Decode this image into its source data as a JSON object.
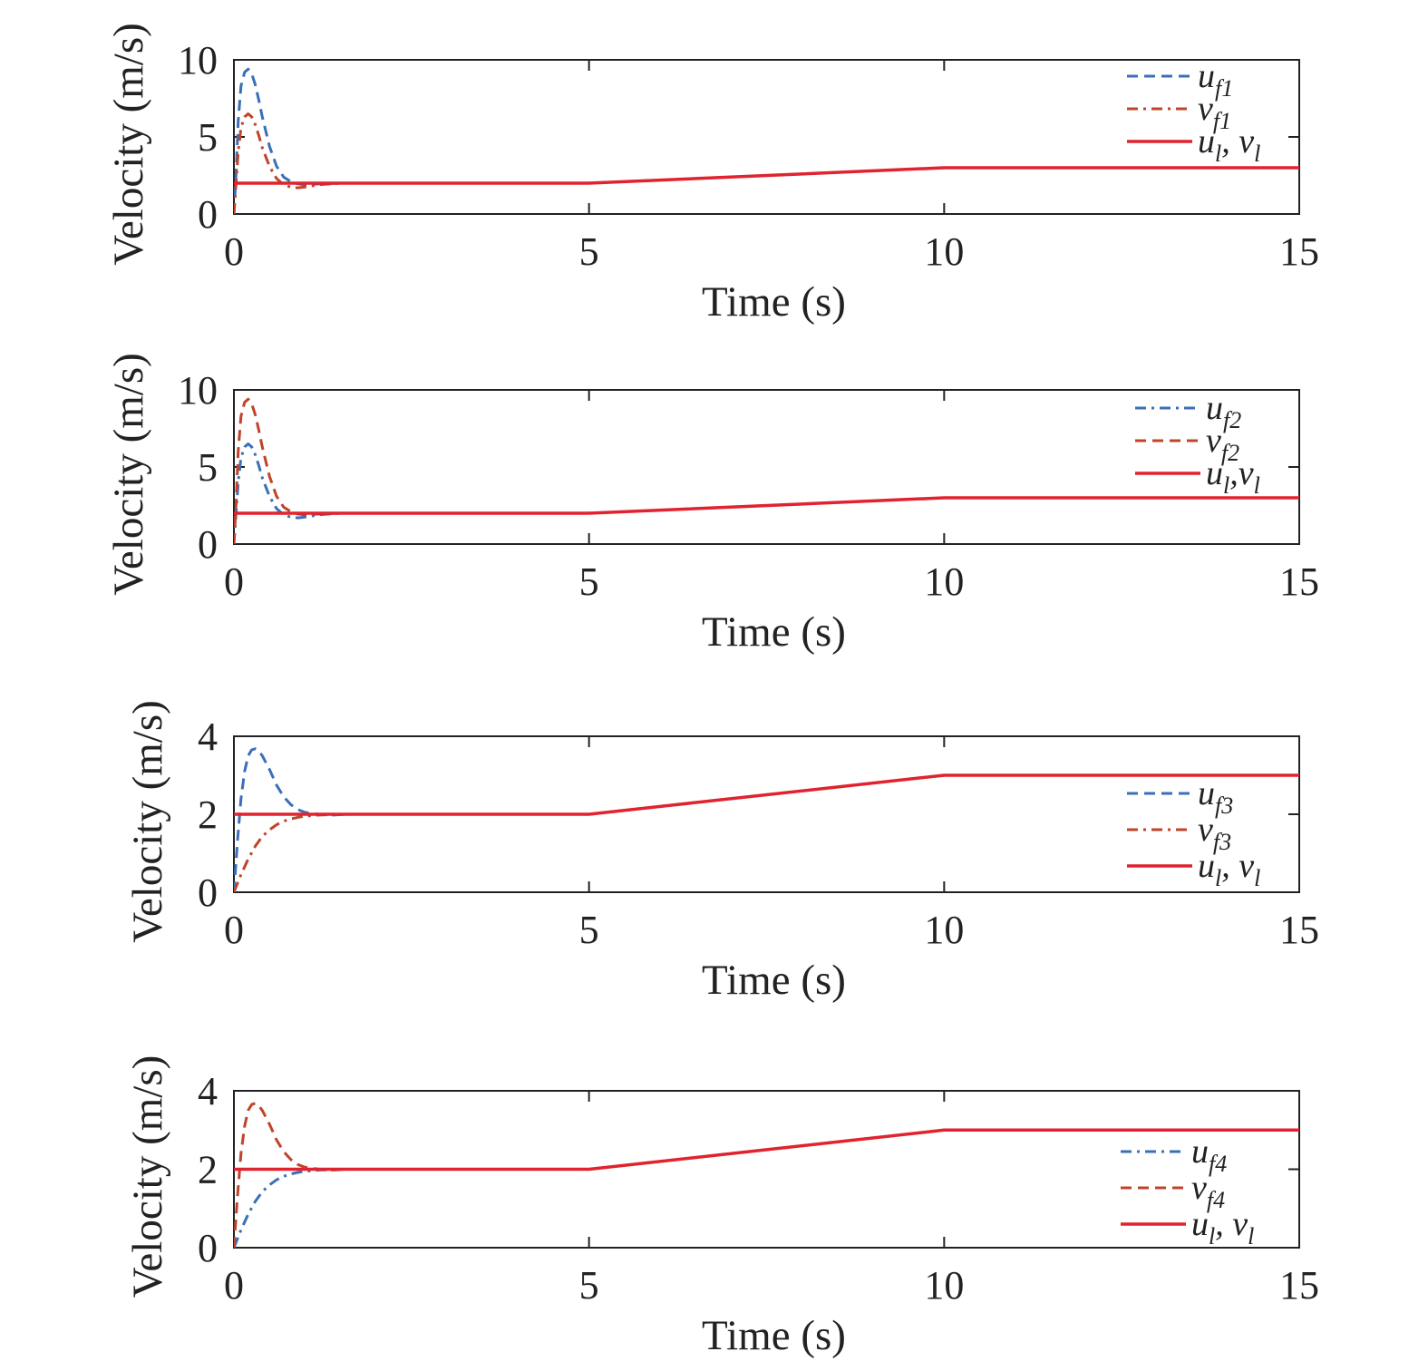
{
  "colors": {
    "blue": "#3a6fb7",
    "darkred": "#c0432a",
    "red": "#e0232f",
    "axis": "#222222"
  },
  "chart_data": [
    {
      "type": "line",
      "xlabel": "Time (s)",
      "ylabel": "Velocity (m/s)",
      "xlim": [
        0,
        15
      ],
      "ylim": [
        0,
        10
      ],
      "xticks": [
        "0",
        "5",
        "10",
        "15"
      ],
      "yticks": [
        "0",
        "5",
        "10"
      ],
      "legend_position": "top-right",
      "series": [
        {
          "name": "u_f1",
          "label_main": "u",
          "label_sub": "f1",
          "color": "blue",
          "style": "dashed",
          "x": [
            0,
            0.03,
            0.06,
            0.1,
            0.15,
            0.2,
            0.25,
            0.3,
            0.35,
            0.4,
            0.5,
            0.6,
            0.7,
            0.8,
            0.9,
            1.0,
            1.2,
            1.5,
            2.0
          ],
          "y": [
            0,
            2.6,
            6.0,
            8.3,
            9.2,
            9.4,
            9.1,
            8.4,
            7.4,
            6.3,
            4.4,
            3.1,
            2.4,
            2.1,
            1.95,
            1.9,
            1.95,
            2.0,
            2.0
          ]
        },
        {
          "name": "v_f1",
          "label_main": "v",
          "label_sub": "f1",
          "color": "darkred",
          "style": "dashdot",
          "x": [
            0,
            0.03,
            0.06,
            0.1,
            0.15,
            0.2,
            0.25,
            0.3,
            0.35,
            0.4,
            0.5,
            0.6,
            0.7,
            0.8,
            0.9,
            1.0,
            1.2,
            1.5,
            2.0
          ],
          "y": [
            0,
            2.0,
            4.0,
            5.6,
            6.3,
            6.5,
            6.3,
            5.8,
            5.1,
            4.3,
            3.1,
            2.3,
            1.9,
            1.75,
            1.7,
            1.75,
            1.9,
            2.0,
            2.0
          ]
        },
        {
          "name": "u_l, v_l",
          "label_main": "u",
          "label_sub": "l",
          "label_tail": ", v",
          "label_sub2": "l",
          "color": "red",
          "style": "solid",
          "x": [
            0,
            5,
            10,
            15
          ],
          "y": [
            2,
            2,
            3,
            3
          ]
        }
      ]
    },
    {
      "type": "line",
      "xlabel": "Time (s)",
      "ylabel": "Velocity (m/s)",
      "xlim": [
        0,
        15
      ],
      "ylim": [
        0,
        10
      ],
      "xticks": [
        "0",
        "5",
        "10",
        "15"
      ],
      "yticks": [
        "0",
        "5",
        "10"
      ],
      "legend_position": "top-right",
      "series": [
        {
          "name": "u_f2",
          "label_main": "u",
          "label_sub": "f2",
          "color": "blue",
          "style": "dashdot",
          "x": [
            0,
            0.03,
            0.06,
            0.1,
            0.15,
            0.2,
            0.25,
            0.3,
            0.35,
            0.4,
            0.5,
            0.6,
            0.7,
            0.8,
            0.9,
            1.0,
            1.2,
            1.5,
            2.0
          ],
          "y": [
            0,
            2.0,
            4.0,
            5.6,
            6.3,
            6.5,
            6.3,
            5.8,
            5.1,
            4.3,
            3.1,
            2.3,
            1.9,
            1.75,
            1.7,
            1.75,
            1.9,
            2.0,
            2.0
          ]
        },
        {
          "name": "v_f2",
          "label_main": "v",
          "label_sub": "f2",
          "color": "darkred",
          "style": "dashed",
          "x": [
            0,
            0.03,
            0.06,
            0.1,
            0.15,
            0.2,
            0.25,
            0.3,
            0.35,
            0.4,
            0.5,
            0.6,
            0.7,
            0.8,
            0.9,
            1.0,
            1.2,
            1.5,
            2.0
          ],
          "y": [
            0,
            2.6,
            6.0,
            8.3,
            9.2,
            9.4,
            9.1,
            8.4,
            7.4,
            6.3,
            4.4,
            3.1,
            2.4,
            2.1,
            1.95,
            1.9,
            1.95,
            2.0,
            2.0
          ]
        },
        {
          "name": "u_l,v_l",
          "label_main": "u",
          "label_sub": "l",
          "label_tail": ",v",
          "label_sub2": "l",
          "color": "red",
          "style": "solid",
          "x": [
            0,
            5,
            10,
            15
          ],
          "y": [
            2,
            2,
            3,
            3
          ]
        }
      ]
    },
    {
      "type": "line",
      "xlabel": "Time (s)",
      "ylabel": "Velocity (m/s)",
      "xlim": [
        0,
        15
      ],
      "ylim": [
        0,
        4
      ],
      "xticks": [
        "0",
        "5",
        "10",
        "15"
      ],
      "yticks": [
        "0",
        "2",
        "4"
      ],
      "legend_position": "lower-right",
      "series": [
        {
          "name": "u_f3",
          "label_main": "u",
          "label_sub": "f3",
          "color": "blue",
          "style": "dashed",
          "x": [
            0,
            0.05,
            0.1,
            0.15,
            0.2,
            0.25,
            0.3,
            0.35,
            0.4,
            0.5,
            0.6,
            0.7,
            0.8,
            0.9,
            1.0,
            1.2,
            1.4,
            1.6,
            2.0
          ],
          "y": [
            0,
            1.3,
            2.4,
            3.1,
            3.5,
            3.65,
            3.68,
            3.62,
            3.5,
            3.15,
            2.75,
            2.45,
            2.25,
            2.12,
            2.05,
            2.0,
            1.98,
            2.0,
            2.0
          ]
        },
        {
          "name": "v_f3",
          "label_main": "v",
          "label_sub": "f3",
          "color": "darkred",
          "style": "dashdot",
          "x": [
            0,
            0.1,
            0.2,
            0.3,
            0.4,
            0.5,
            0.6,
            0.7,
            0.8,
            0.9,
            1.0,
            1.2,
            1.4,
            1.6,
            2.0
          ],
          "y": [
            0,
            0.45,
            0.85,
            1.18,
            1.43,
            1.6,
            1.73,
            1.82,
            1.88,
            1.92,
            1.95,
            1.98,
            1.99,
            2.0,
            2.0
          ]
        },
        {
          "name": "u_l, v_l",
          "label_main": "u",
          "label_sub": "l",
          "label_tail": ", v",
          "label_sub2": "l",
          "color": "red",
          "style": "solid",
          "x": [
            0,
            5,
            10,
            15
          ],
          "y": [
            2,
            2,
            3,
            3
          ]
        }
      ]
    },
    {
      "type": "line",
      "xlabel": "Time (s)",
      "ylabel": "Velocity (m/s)",
      "xlim": [
        0,
        15
      ],
      "ylim": [
        0,
        4
      ],
      "xticks": [
        "0",
        "5",
        "10",
        "15"
      ],
      "yticks": [
        "0",
        "2",
        "4"
      ],
      "legend_position": "lower-right",
      "series": [
        {
          "name": "u_f4",
          "label_main": "u",
          "label_sub": "f4",
          "color": "blue",
          "style": "dashdot",
          "x": [
            0,
            0.1,
            0.2,
            0.3,
            0.4,
            0.5,
            0.6,
            0.7,
            0.8,
            0.9,
            1.0,
            1.2,
            1.4,
            1.6,
            2.0
          ],
          "y": [
            0,
            0.45,
            0.85,
            1.18,
            1.43,
            1.6,
            1.73,
            1.82,
            1.88,
            1.92,
            1.95,
            1.98,
            1.99,
            2.0,
            2.0
          ]
        },
        {
          "name": "v_f4",
          "label_main": "v",
          "label_sub": "f4",
          "color": "darkred",
          "style": "dashed",
          "x": [
            0,
            0.05,
            0.1,
            0.15,
            0.2,
            0.25,
            0.3,
            0.35,
            0.4,
            0.5,
            0.6,
            0.7,
            0.8,
            0.9,
            1.0,
            1.2,
            1.4,
            1.6,
            2.0
          ],
          "y": [
            0,
            1.3,
            2.4,
            3.1,
            3.5,
            3.65,
            3.68,
            3.62,
            3.5,
            3.15,
            2.75,
            2.45,
            2.25,
            2.12,
            2.05,
            2.0,
            1.98,
            2.0,
            2.0
          ]
        },
        {
          "name": "u_l, v_l",
          "label_main": "u",
          "label_sub": "l",
          "label_tail": ", v",
          "label_sub2": "l",
          "color": "red",
          "style": "solid",
          "x": [
            0,
            5,
            10,
            15
          ],
          "y": [
            2,
            2,
            3,
            3
          ]
        }
      ]
    }
  ]
}
